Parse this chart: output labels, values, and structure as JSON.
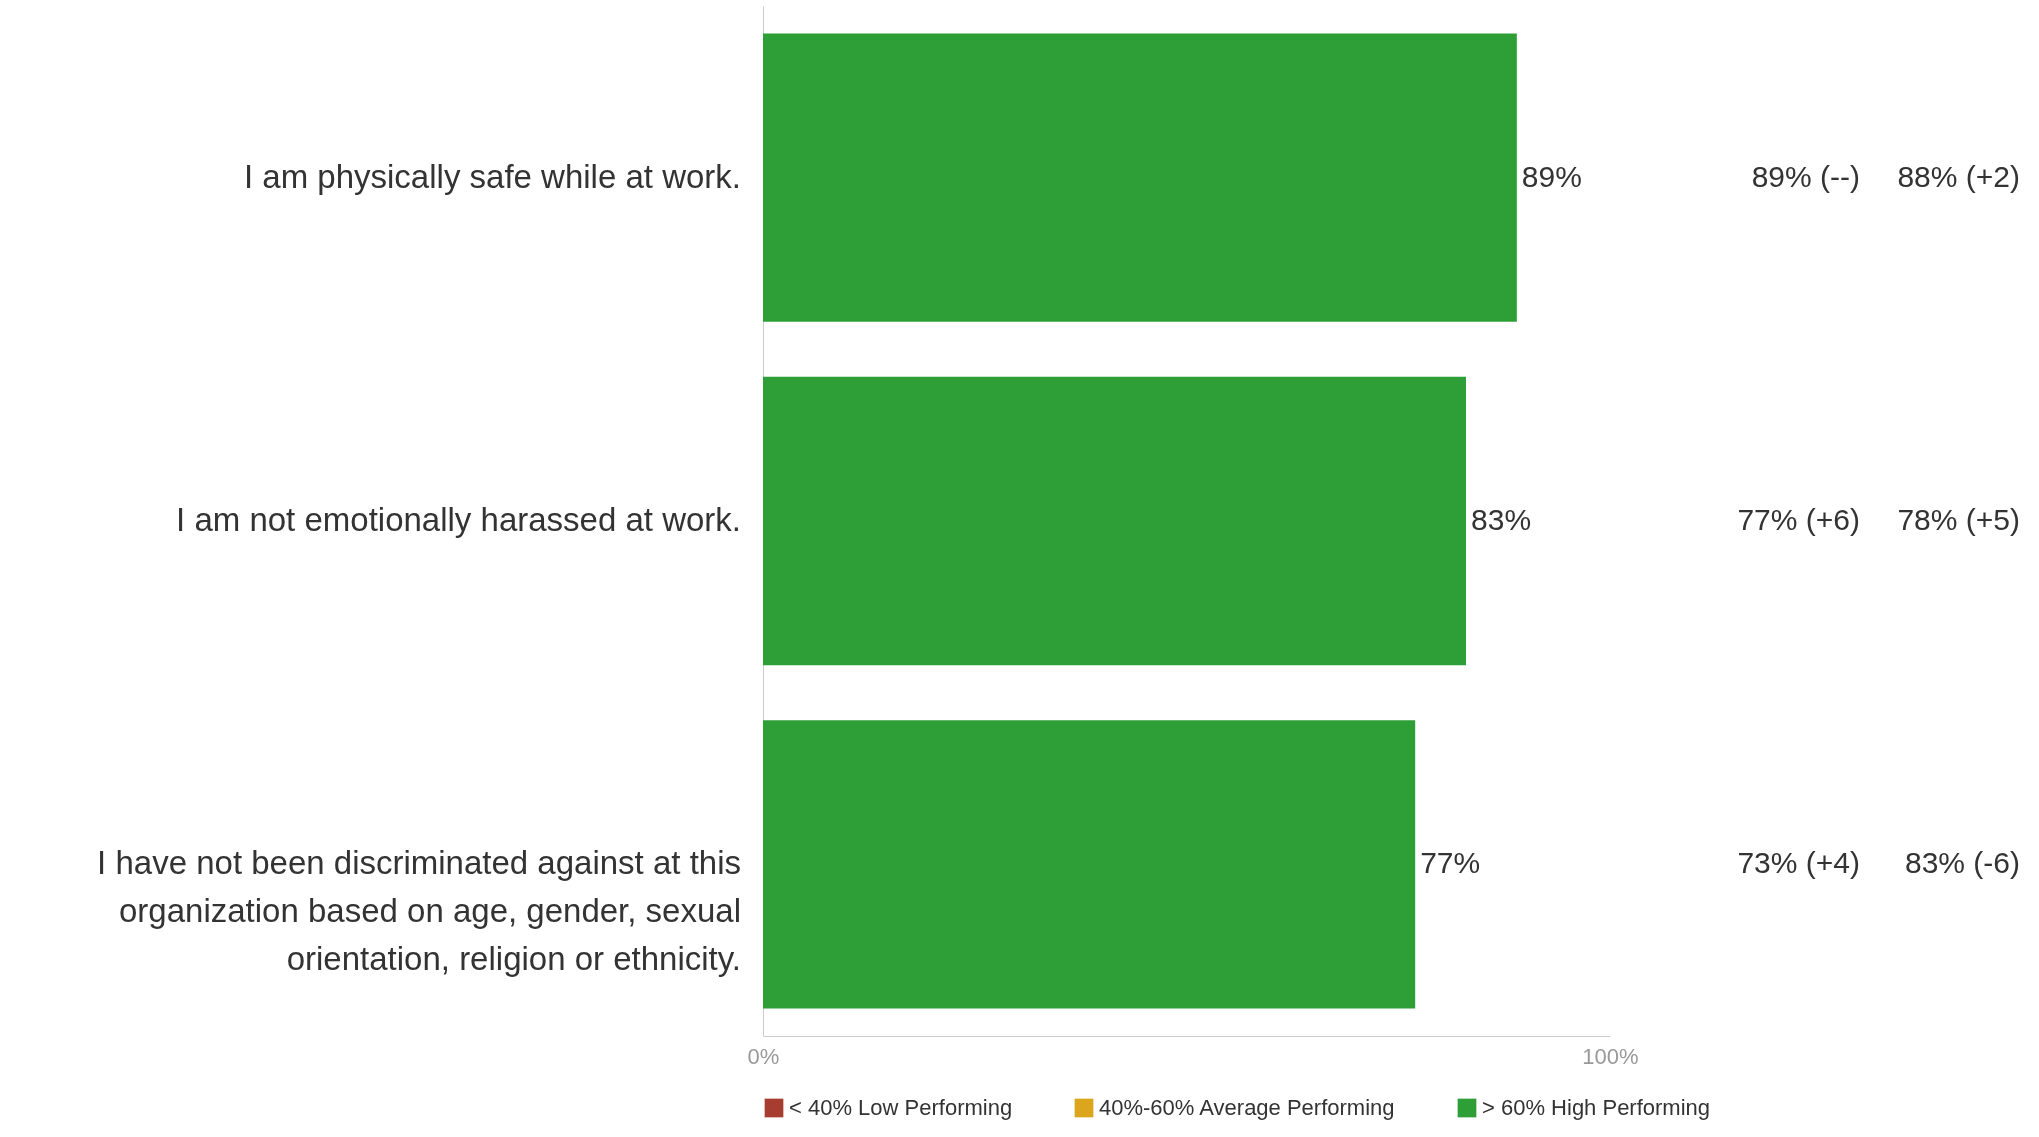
{
  "chart_data": {
    "type": "bar",
    "orientation": "horizontal",
    "categories": [
      "I am physically safe while at work.",
      "I am not emotionally harassed at work.",
      "I have not been discriminated against at this organization based on age, gender, sexual orientation, religion or ethnicity."
    ],
    "series": [
      {
        "name": "< 40% Low Performing",
        "color": "#a63d30",
        "values": [
          null,
          null,
          null
        ]
      },
      {
        "name": "40%-60% Average Performing",
        "color": "#dca51e",
        "values": [
          null,
          null,
          null
        ]
      },
      {
        "name": "> 60% High Performing",
        "color": "#2e9e37",
        "values": [
          89,
          83,
          77
        ],
        "value_labels": [
          "89%",
          "83%",
          "77%"
        ]
      }
    ],
    "xlim": [
      0,
      100
    ],
    "xticks": [
      {
        "value": 0,
        "label": "0%"
      },
      {
        "value": 100,
        "label": "100%"
      }
    ],
    "grid": false,
    "legend": "bottom",
    "annotations": [
      "89% (--)",
      "88% (+2)",
      "77% (+6)",
      "78% (+5)",
      "73% (+4)",
      "83% (-6)"
    ]
  }
}
